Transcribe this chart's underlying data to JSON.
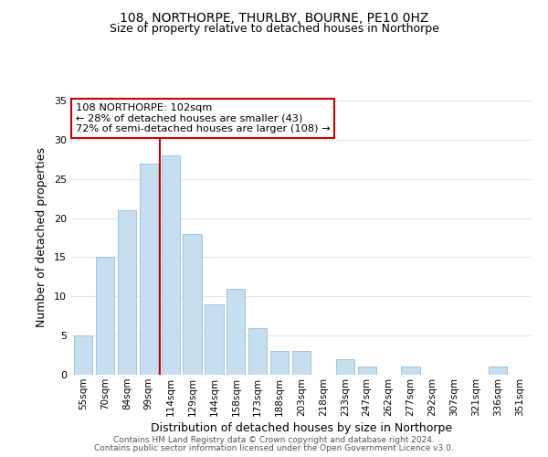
{
  "title": "108, NORTHORPE, THURLBY, BOURNE, PE10 0HZ",
  "subtitle": "Size of property relative to detached houses in Northorpe",
  "xlabel": "Distribution of detached houses by size in Northorpe",
  "ylabel": "Number of detached properties",
  "bar_labels": [
    "55sqm",
    "70sqm",
    "84sqm",
    "99sqm",
    "114sqm",
    "129sqm",
    "144sqm",
    "158sqm",
    "173sqm",
    "188sqm",
    "203sqm",
    "218sqm",
    "233sqm",
    "247sqm",
    "262sqm",
    "277sqm",
    "292sqm",
    "307sqm",
    "321sqm",
    "336sqm",
    "351sqm"
  ],
  "bar_values": [
    5,
    15,
    21,
    27,
    28,
    18,
    9,
    11,
    6,
    3,
    3,
    0,
    2,
    1,
    0,
    1,
    0,
    0,
    0,
    1,
    0
  ],
  "bar_color": "#c5dff0",
  "bar_edge_color": "#a0c4e0",
  "vline_x": 3.5,
  "vline_color": "#cc0000",
  "ylim": [
    0,
    35
  ],
  "yticks": [
    0,
    5,
    10,
    15,
    20,
    25,
    30,
    35
  ],
  "annotation_line1": "108 NORTHORPE: 102sqm",
  "annotation_line2": "← 28% of detached houses are smaller (43)",
  "annotation_line3": "72% of semi-detached houses are larger (108) →",
  "annotation_box_edgecolor": "#cc0000",
  "annotation_box_facecolor": "#ffffff",
  "footer1": "Contains HM Land Registry data © Crown copyright and database right 2024.",
  "footer2": "Contains public sector information licensed under the Open Government Licence v3.0.",
  "background_color": "#ffffff",
  "grid_color": "#dce9f5"
}
